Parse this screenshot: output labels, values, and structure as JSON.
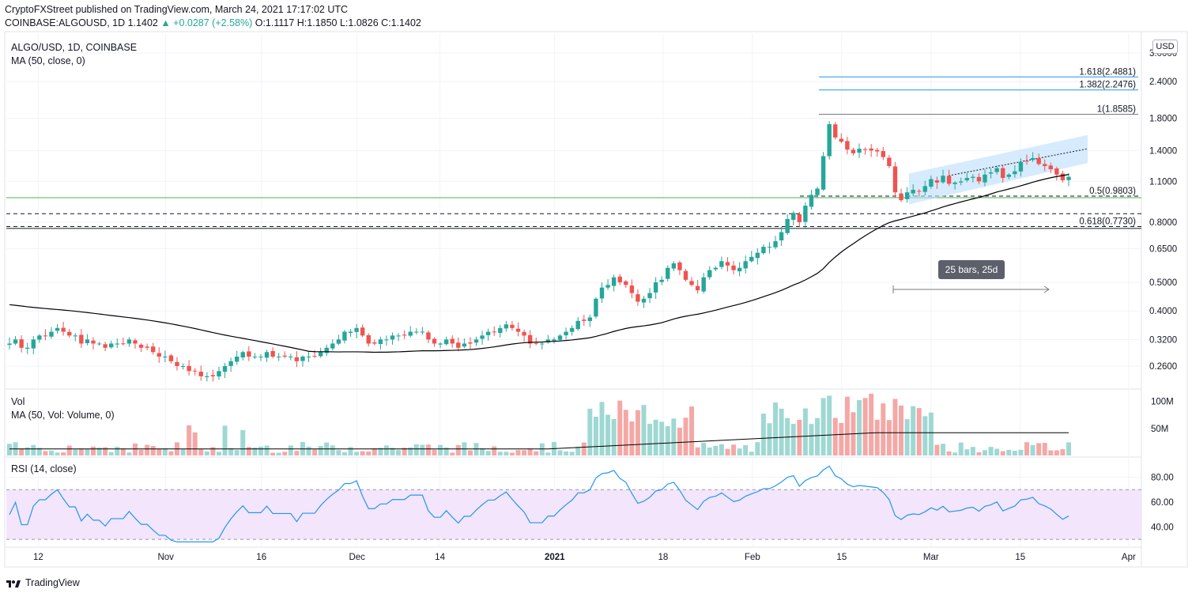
{
  "header": {
    "published": "CryptoFXStreet published on TradingView.com, March 24, 2021 17:17:02 UTC",
    "symbol": "COINBASE:ALGOUSD, 1D",
    "last": "1.1402",
    "change": "▲ +0.0287 (+2.58%)",
    "ohlc": "O:1.1117 H:1.1850 L:1.0826 C:1.1402"
  },
  "legend": {
    "title": "ALGO/USD, 1D, COINBASE",
    "ma": "MA (50, close, 0)",
    "vol": "Vol",
    "vol_ma": "MA (50, Vol: Volume, 0)",
    "rsi": "RSI (14, close)"
  },
  "currency_button": "USD",
  "measure_label": "25 bars, 25d",
  "footer_brand": "TradingView",
  "colors": {
    "up": "#26a69a",
    "down": "#ef5350",
    "ma": "#000000",
    "rsi": "#2196f3",
    "fib": "#2196f3",
    "green_level": "#4caf50",
    "channel": "#bbdefb",
    "rsi_band": "#f3e5fc"
  },
  "chart_data": [
    {
      "type": "candlestick",
      "title": "ALGO/USD, 1D, COINBASE",
      "y_scale": "log",
      "ylim": [
        0.22,
        3.5
      ],
      "y_ticks": [
        "3.0000",
        "2.4000",
        "1.8000",
        "1.4000",
        "1.1000",
        "0.8000",
        "0.6500",
        "0.5000",
        "0.4000",
        "0.3200",
        "0.2600"
      ],
      "x_ticks": [
        "12",
        "Nov",
        "16",
        "Dec",
        "14",
        "2021",
        "18",
        "Feb",
        "15",
        "Mar",
        "15",
        "Apr"
      ],
      "x_range": [
        "2020-10-07",
        "2021-04-03"
      ],
      "close_series_approx": [
        0.31,
        0.32,
        0.3,
        0.3,
        0.32,
        0.33,
        0.33,
        0.34,
        0.35,
        0.34,
        0.33,
        0.33,
        0.31,
        0.32,
        0.31,
        0.31,
        0.3,
        0.31,
        0.31,
        0.31,
        0.32,
        0.31,
        0.3,
        0.3,
        0.29,
        0.28,
        0.28,
        0.27,
        0.26,
        0.26,
        0.25,
        0.25,
        0.24,
        0.24,
        0.24,
        0.25,
        0.26,
        0.27,
        0.28,
        0.29,
        0.28,
        0.28,
        0.28,
        0.29,
        0.28,
        0.28,
        0.28,
        0.28,
        0.27,
        0.28,
        0.28,
        0.28,
        0.29,
        0.3,
        0.31,
        0.32,
        0.34,
        0.34,
        0.35,
        0.33,
        0.31,
        0.31,
        0.32,
        0.32,
        0.33,
        0.33,
        0.33,
        0.34,
        0.34,
        0.34,
        0.32,
        0.31,
        0.31,
        0.32,
        0.31,
        0.3,
        0.31,
        0.31,
        0.32,
        0.33,
        0.34,
        0.34,
        0.35,
        0.36,
        0.35,
        0.34,
        0.33,
        0.31,
        0.31,
        0.31,
        0.32,
        0.32,
        0.33,
        0.34,
        0.35,
        0.37,
        0.37,
        0.38,
        0.44,
        0.48,
        0.49,
        0.52,
        0.5,
        0.49,
        0.46,
        0.43,
        0.44,
        0.46,
        0.5,
        0.51,
        0.56,
        0.58,
        0.55,
        0.51,
        0.49,
        0.47,
        0.52,
        0.55,
        0.56,
        0.59,
        0.57,
        0.55,
        0.56,
        0.59,
        0.61,
        0.63,
        0.66,
        0.66,
        0.69,
        0.74,
        0.82,
        0.86,
        0.8,
        0.91,
        0.99,
        1.04,
        1.34,
        1.72,
        1.55,
        1.5,
        1.41,
        1.37,
        1.42,
        1.41,
        1.4,
        1.39,
        1.33,
        1.24,
        1.01,
        0.95,
        1.01,
        1.03,
        1.02,
        1.06,
        1.12,
        1.09,
        1.15,
        1.08,
        1.09,
        1.1,
        1.13,
        1.14,
        1.1,
        1.16,
        1.18,
        1.22,
        1.13,
        1.16,
        1.19,
        1.28,
        1.29,
        1.32,
        1.26,
        1.24,
        1.21,
        1.16,
        1.11,
        1.14
      ],
      "moving_average": {
        "name": "MA (50, close, 0)",
        "start": 0.42,
        "mid": 0.29,
        "end": 1.13
      },
      "fib_levels": [
        {
          "label": "1.618(2.4881)",
          "value": 2.4881
        },
        {
          "label": "1.382(2.2476)",
          "value": 2.2476
        },
        {
          "label": "1(1.8585)",
          "value": 1.8585
        },
        {
          "label": "0.5(0.9803)",
          "value": 0.9803
        },
        {
          "label": "0.618(0.7730)",
          "value": 0.773
        }
      ],
      "horizontal_levels": [
        0.9803,
        0.855,
        0.773,
        0.762
      ]
    },
    {
      "type": "bar",
      "title": "Vol",
      "y_ticks": [
        "100M",
        "50M"
      ],
      "ylim": [
        0,
        120
      ]
    },
    {
      "type": "line",
      "title": "RSI (14, close)",
      "y_ticks": [
        "80.00",
        "60.00",
        "40.00"
      ],
      "ylim": [
        25,
        95
      ],
      "band": [
        30,
        70
      ]
    }
  ]
}
